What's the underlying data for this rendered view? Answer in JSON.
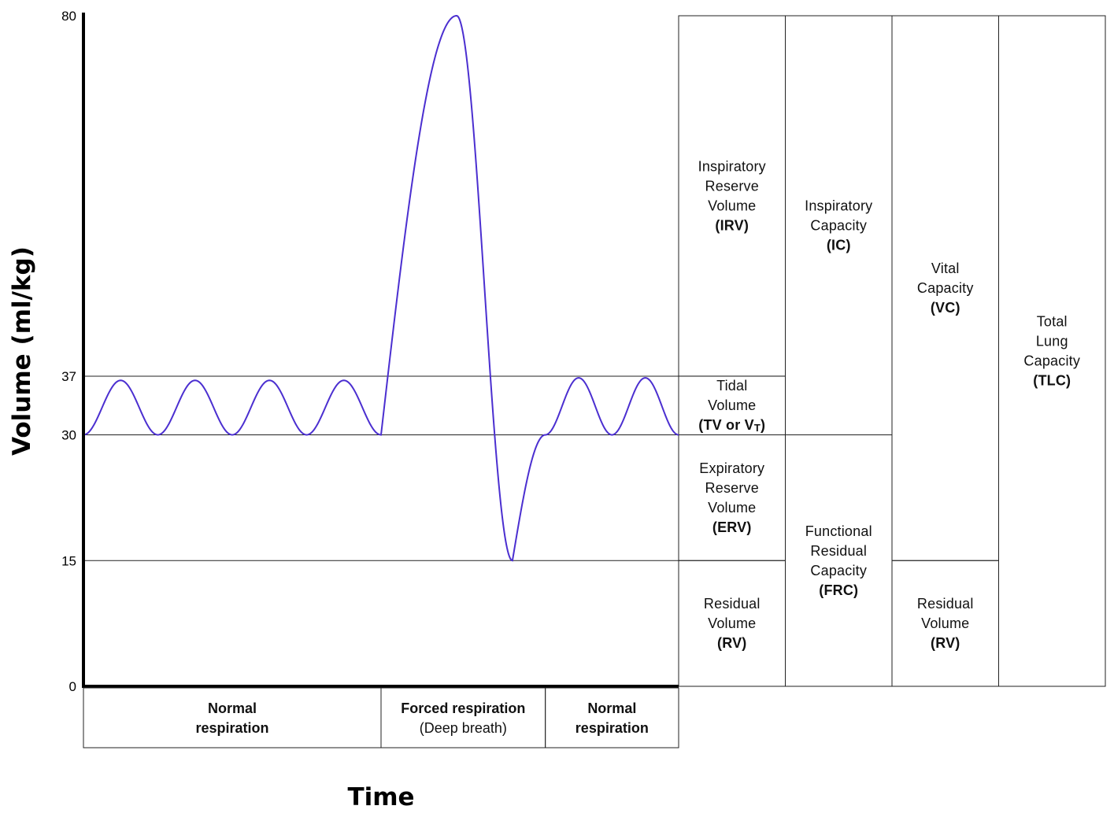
{
  "chart_data": {
    "type": "line",
    "ylabel": "Volume (ml/kg)",
    "xlabel": "Time",
    "y_ticks": [
      "0",
      "15",
      "30",
      "37",
      "80"
    ],
    "ylim": [
      0,
      80
    ],
    "reference_lines": [
      15,
      30,
      37
    ],
    "series": [
      {
        "description": "spirogram trace",
        "color": "#4b2fd0",
        "segments": [
          {
            "phase": "normal",
            "cycles": 4,
            "min": 30,
            "max": 36.5
          },
          {
            "phase": "forced",
            "cycles": 1,
            "min": 15,
            "max": 80
          },
          {
            "phase": "normal",
            "cycles": 2,
            "min": 30,
            "max": 36.8
          }
        ]
      }
    ],
    "phases": [
      {
        "lines": [
          "Normal",
          "respiration"
        ],
        "bold": [
          true,
          true
        ],
        "span": [
          0,
          0.5
        ]
      },
      {
        "lines": [
          "Forced respiration",
          "(Deep breath)"
        ],
        "bold": [
          true,
          false
        ],
        "span": [
          0.5,
          0.776
        ]
      },
      {
        "lines": [
          "Normal",
          "respiration"
        ],
        "bold": [
          true,
          true
        ],
        "span": [
          0.776,
          1
        ]
      }
    ]
  },
  "volume_table": {
    "columns": [
      {
        "cells": [
          {
            "range": [
              37,
              80
            ],
            "lines": [
              "Inspiratory",
              "Reserve",
              "Volume"
            ],
            "abbr": "(IRV)"
          },
          {
            "range": [
              30,
              37
            ],
            "lines": [
              "Tidal",
              "Volume"
            ],
            "abbr": "(TV or V",
            "abbr_sub": "T",
            "abbr_end": ")"
          },
          {
            "range": [
              15,
              30
            ],
            "lines": [
              "Expiratory",
              "Reserve",
              "Volume"
            ],
            "abbr": "(ERV)"
          },
          {
            "range": [
              0,
              15
            ],
            "lines": [
              "Residual",
              "Volume"
            ],
            "abbr": "(RV)"
          }
        ]
      },
      {
        "cells": [
          {
            "range": [
              30,
              80
            ],
            "lines": [
              "Inspiratory",
              "Capacity"
            ],
            "abbr": "(IC)"
          },
          {
            "range": [
              0,
              30
            ],
            "lines": [
              "Functional",
              "Residual",
              "Capacity"
            ],
            "abbr": "(FRC)"
          }
        ]
      },
      {
        "cells": [
          {
            "range": [
              15,
              80
            ],
            "lines": [
              "Vital",
              "Capacity"
            ],
            "abbr": "(VC)"
          },
          {
            "range": [
              0,
              15
            ],
            "lines": [
              "Residual",
              "Volume"
            ],
            "abbr": "(RV)"
          }
        ]
      },
      {
        "cells": [
          {
            "range": [
              0,
              80
            ],
            "lines": [
              "Total",
              "Lung",
              "Capacity"
            ],
            "abbr": "(TLC)"
          }
        ]
      }
    ]
  }
}
